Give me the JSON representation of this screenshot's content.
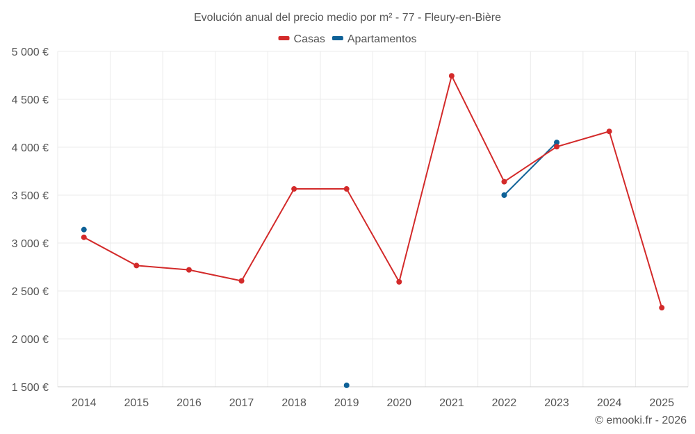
{
  "chart_data": {
    "type": "line",
    "title": "Evolución anual del precio medio por m² - 77 - Fleury-en-Bière",
    "categories": [
      "2014",
      "2015",
      "2016",
      "2017",
      "2018",
      "2019",
      "2020",
      "2021",
      "2022",
      "2023",
      "2024",
      "2025"
    ],
    "ylim": [
      1500,
      5000
    ],
    "yticks": [
      1500,
      2000,
      2500,
      3000,
      3500,
      4000,
      4500,
      5000
    ],
    "ytick_labels": [
      "1 500 €",
      "2 000 €",
      "2 500 €",
      "3 000 €",
      "3 500 €",
      "4 000 €",
      "4 500 €",
      "5 000 €"
    ],
    "grid": true,
    "legend_position": "top-center",
    "series": [
      {
        "name": "Casas",
        "color": "#d32a2a",
        "values": [
          3060,
          2765,
          2720,
          2605,
          3565,
          3565,
          2595,
          4745,
          3640,
          4005,
          4165,
          2325
        ]
      },
      {
        "name": "Apartamentos",
        "color": "#0e6197",
        "values": [
          3140,
          null,
          null,
          null,
          null,
          1515,
          null,
          null,
          3500,
          4050,
          null,
          null
        ]
      }
    ]
  },
  "credit": "© emooki.fr - 2026"
}
